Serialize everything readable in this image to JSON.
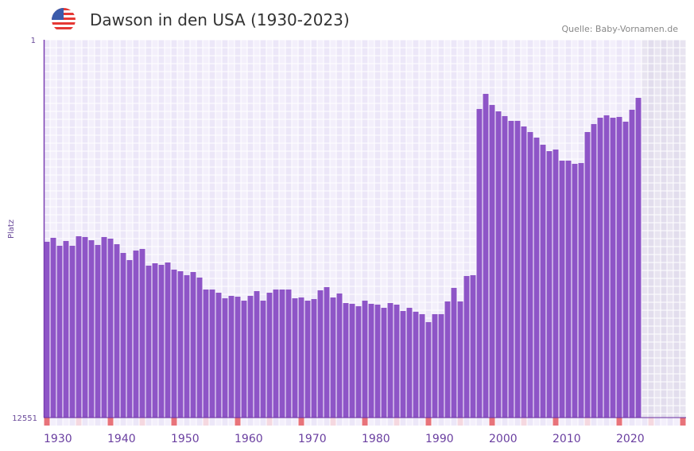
{
  "header": {
    "title": "Dawson in den USA (1930-2023)",
    "source": "Quelle: Baby-Vornamen.de",
    "flag_icon": "us-flag-icon"
  },
  "chart_data": {
    "type": "bar",
    "title": "Dawson in den USA (1930-2023)",
    "xlabel": "",
    "ylabel": "Platz",
    "y_axis_inverted": true,
    "ylim": [
      1,
      12551
    ],
    "y_ticks": [
      "1",
      "12551"
    ],
    "x_range": [
      1930,
      2030
    ],
    "x_ticks": [
      "1930",
      "1940",
      "1950",
      "1960",
      "1970",
      "1980",
      "1990",
      "2000",
      "2010",
      "2020"
    ],
    "grid": true,
    "bar_color": "#8e55c7",
    "future_shade_color": "#e4e0ec",
    "decade_marker_color": "#e8737a",
    "half_decade_marker_color": "#f5d8e0",
    "x": [
      1930,
      1931,
      1932,
      1933,
      1934,
      1935,
      1936,
      1937,
      1938,
      1939,
      1940,
      1941,
      1942,
      1943,
      1944,
      1945,
      1946,
      1947,
      1948,
      1949,
      1950,
      1951,
      1952,
      1953,
      1954,
      1955,
      1956,
      1957,
      1958,
      1959,
      1960,
      1961,
      1962,
      1963,
      1964,
      1965,
      1966,
      1967,
      1968,
      1969,
      1970,
      1971,
      1972,
      1973,
      1974,
      1975,
      1976,
      1977,
      1978,
      1979,
      1980,
      1981,
      1982,
      1983,
      1984,
      1985,
      1986,
      1987,
      1988,
      1989,
      1990,
      1991,
      1992,
      1993,
      1994,
      1995,
      1996,
      1997,
      1998,
      1999,
      2000,
      2001,
      2002,
      2003,
      2004,
      2005,
      2006,
      2007,
      2008,
      2009,
      2010,
      2011,
      2012,
      2013,
      2014,
      2015,
      2016,
      2017,
      2018,
      2019,
      2020,
      2021,
      2022,
      2023
    ],
    "values": [
      6711,
      6580,
      6844,
      6685,
      6844,
      6527,
      6553,
      6659,
      6817,
      6553,
      6606,
      6791,
      7082,
      7319,
      7002,
      6949,
      7504,
      7425,
      7478,
      7399,
      7636,
      7689,
      7821,
      7716,
      7900,
      8297,
      8297,
      8403,
      8588,
      8508,
      8535,
      8667,
      8508,
      8350,
      8667,
      8403,
      8297,
      8297,
      8297,
      8588,
      8561,
      8667,
      8614,
      8323,
      8217,
      8561,
      8429,
      8746,
      8772,
      8851,
      8667,
      8772,
      8799,
      8904,
      8746,
      8799,
      9010,
      8904,
      9036,
      9116,
      9380,
      9116,
      9116,
      8693,
      8244,
      8693,
      7848,
      7821,
      2300,
      1798,
      2167,
      2379,
      2537,
      2696,
      2696,
      2881,
      3066,
      3251,
      3488,
      3700,
      3647,
      4017,
      4017,
      4122,
      4096,
      3066,
      2801,
      2590,
      2511,
      2590,
      2564,
      2722,
      2326,
      1930
    ]
  }
}
